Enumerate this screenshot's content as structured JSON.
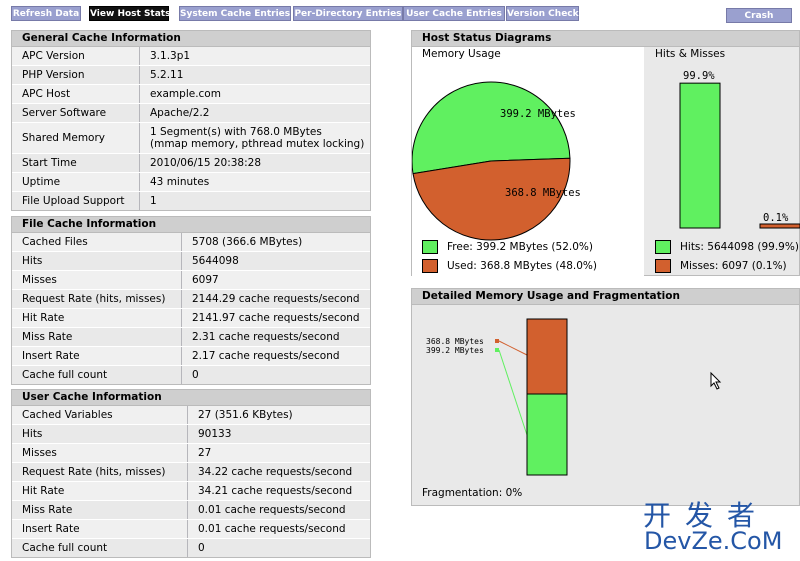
{
  "nav": {
    "refresh": "Refresh Data",
    "host_stats": "View Host Stats",
    "system_cache": "System Cache Entries",
    "per_directory": "Per-Directory Entries",
    "user_cache": "User Cache Entries",
    "version": "Version Check",
    "crash": "Crash Server"
  },
  "general": {
    "title": "General Cache Information",
    "rows": [
      {
        "k": "APC Version",
        "v": "3.1.3p1"
      },
      {
        "k": "PHP Version",
        "v": "5.2.11"
      },
      {
        "k": "APC Host",
        "v": "example.com"
      },
      {
        "k": "Server Software",
        "v": "Apache/2.2"
      },
      {
        "k": "Shared Memory",
        "v": "1 Segment(s) with 768.0 MBytes\n(mmap memory, pthread mutex locking)"
      },
      {
        "k": "Start Time",
        "v": "2010/06/15 20:38:28"
      },
      {
        "k": "Uptime",
        "v": "43 minutes"
      },
      {
        "k": "File Upload Support",
        "v": "1"
      }
    ]
  },
  "file_cache": {
    "title": "File Cache Information",
    "rows": [
      {
        "k": "Cached Files",
        "v": "5708 (366.6 MBytes)"
      },
      {
        "k": "Hits",
        "v": "5644098"
      },
      {
        "k": "Misses",
        "v": "6097"
      },
      {
        "k": "Request Rate (hits, misses)",
        "v": "2144.29 cache requests/second"
      },
      {
        "k": "Hit Rate",
        "v": "2141.97 cache requests/second"
      },
      {
        "k": "Miss Rate",
        "v": "2.31 cache requests/second"
      },
      {
        "k": "Insert Rate",
        "v": "2.17 cache requests/second"
      },
      {
        "k": "Cache full count",
        "v": "0"
      }
    ]
  },
  "user_cache": {
    "title": "User Cache Information",
    "rows": [
      {
        "k": "Cached Variables",
        "v": "27 (351.6 KBytes)"
      },
      {
        "k": "Hits",
        "v": "90133"
      },
      {
        "k": "Misses",
        "v": "27"
      },
      {
        "k": "Request Rate (hits, misses)",
        "v": "34.22 cache requests/second"
      },
      {
        "k": "Hit Rate",
        "v": "34.21 cache requests/second"
      },
      {
        "k": "Miss Rate",
        "v": "0.01 cache requests/second"
      },
      {
        "k": "Insert Rate",
        "v": "0.01 cache requests/second"
      },
      {
        "k": "Cache full count",
        "v": "0"
      }
    ]
  },
  "host_status": {
    "title": "Host Status Diagrams",
    "memory_title": "Memory Usage",
    "hits_title": "Hits & Misses",
    "free_label": "399.2 MBytes",
    "used_label": "368.8 MBytes",
    "free_fraction": 0.52,
    "used_fraction": 0.48,
    "hits_pct_label": "99.9%",
    "miss_pct_label": "0.1%",
    "hits_fraction": 0.999,
    "legend_free": "Free: 399.2 MBytes (52.0%)",
    "legend_used": "Used: 368.8 MBytes (48.0%)",
    "legend_hits": "Hits: 5644098 (99.9%)",
    "legend_misses": "Misses: 6097 (0.1%)",
    "colors": {
      "free": "#60f060",
      "used": "#d2602e"
    }
  },
  "detail": {
    "title": "Detailed Memory Usage and Fragmentation",
    "used_label": "368.8 MBytes",
    "free_label": "399.2 MBytes",
    "fragmentation": "Fragmentation: 0%"
  },
  "watermark": {
    "line1": "开发者",
    "line2": "DevZe.CoM"
  }
}
